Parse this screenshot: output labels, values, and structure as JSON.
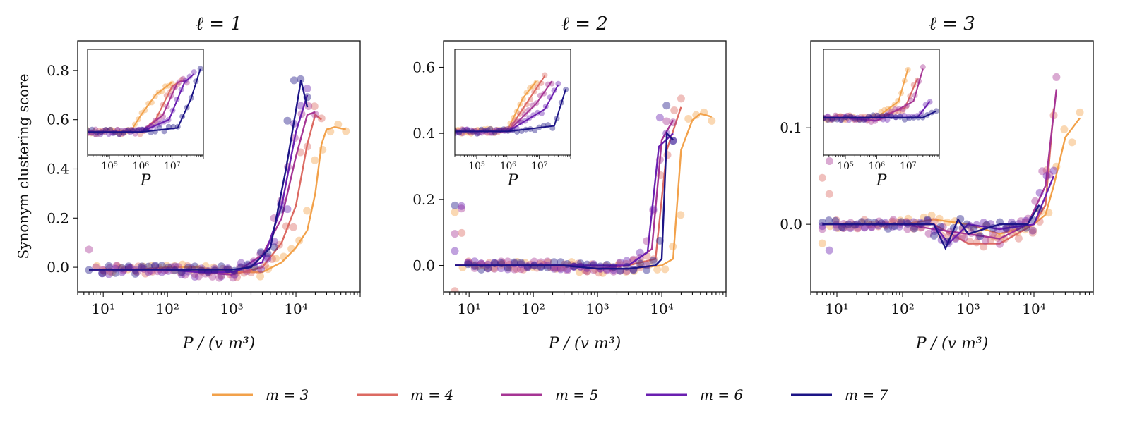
{
  "legend": {
    "placement": "bottom-center",
    "entries": [
      {
        "label": "m = 3",
        "color": "#f2a14a"
      },
      {
        "label": "m = 4",
        "color": "#dc6a62"
      },
      {
        "label": "m = 5",
        "color": "#a63594"
      },
      {
        "label": "m = 6",
        "color": "#6a1fb0"
      },
      {
        "label": "m = 7",
        "color": "#1c1486"
      }
    ]
  },
  "chart_data": [
    {
      "type": "line",
      "title": "ℓ = 1",
      "xlabel": "P / (v m³)",
      "ylabel": "Synonym clustering score",
      "xscale": "log",
      "xlim": [
        4,
        100000
      ],
      "ylim": [
        -0.1,
        0.92
      ],
      "xticks": [
        {
          "value": 10,
          "label": "10¹"
        },
        {
          "value": 100,
          "label": "10²"
        },
        {
          "value": 1000,
          "label": "10³"
        },
        {
          "value": 10000,
          "label": "10⁴"
        }
      ],
      "yticks": [
        {
          "value": 0.0,
          "label": "0.0"
        },
        {
          "value": 0.2,
          "label": "0.2"
        },
        {
          "value": 0.4,
          "label": "0.4"
        },
        {
          "value": 0.6,
          "label": "0.6"
        },
        {
          "value": 0.8,
          "label": "0.8"
        }
      ],
      "grid": false,
      "series": [
        {
          "name": "m = 3",
          "x": [
            6,
            10,
            30,
            100,
            300,
            1000,
            3000,
            6000,
            10000,
            15000,
            20000,
            25000,
            30000,
            40000,
            60000
          ],
          "y": [
            -0.01,
            -0.01,
            -0.01,
            0.0,
            0.0,
            -0.02,
            -0.02,
            0.02,
            0.08,
            0.15,
            0.3,
            0.5,
            0.56,
            0.57,
            0.56
          ]
        },
        {
          "name": "m = 4",
          "x": [
            6,
            10,
            30,
            100,
            300,
            1000,
            3000,
            6000,
            10000,
            15000,
            20000,
            25000
          ],
          "y": [
            -0.01,
            -0.01,
            -0.01,
            -0.01,
            -0.01,
            -0.03,
            0.0,
            0.1,
            0.25,
            0.5,
            0.62,
            0.6
          ]
        },
        {
          "name": "m = 5",
          "x": [
            6,
            10,
            30,
            100,
            300,
            1000,
            3000,
            6000,
            10000,
            15000,
            20000
          ],
          "y": [
            -0.01,
            -0.01,
            -0.01,
            -0.01,
            -0.02,
            -0.03,
            0.05,
            0.2,
            0.45,
            0.62,
            0.63
          ]
        },
        {
          "name": "m = 6",
          "x": [
            6,
            10,
            30,
            100,
            300,
            1000,
            3000,
            6000,
            10000,
            15000
          ],
          "y": [
            -0.01,
            -0.01,
            -0.01,
            -0.01,
            -0.02,
            -0.02,
            0.02,
            0.25,
            0.55,
            0.7
          ]
        },
        {
          "name": "m = 7",
          "x": [
            6,
            10,
            30,
            100,
            300,
            1000,
            2000,
            4000,
            7000,
            12000,
            15000
          ],
          "y": [
            -0.01,
            -0.01,
            -0.01,
            -0.01,
            -0.01,
            -0.01,
            0.0,
            0.08,
            0.4,
            0.76,
            0.65
          ]
        }
      ],
      "inset": {
        "xlabel": "P",
        "xscale": "log",
        "xlim": [
          20000,
          100000000
        ],
        "xticks": [
          {
            "value": 100000,
            "label": "10⁵"
          },
          {
            "value": 1000000,
            "label": "10⁶"
          },
          {
            "value": 10000000,
            "label": "10⁷"
          }
        ],
        "ylim": [
          -0.1,
          0.92
        ],
        "series": [
          {
            "name": "m = 3",
            "x": [
              20000,
              100000,
              500000,
              1000000,
              3000000,
              10000000
            ],
            "y": [
              0.0,
              0.0,
              0.02,
              0.2,
              0.45,
              0.6
            ]
          },
          {
            "name": "m = 4",
            "x": [
              20000,
              100000,
              1000000,
              3000000,
              10000000,
              20000000
            ],
            "y": [
              0.0,
              0.0,
              0.0,
              0.15,
              0.55,
              0.62
            ]
          },
          {
            "name": "m = 5",
            "x": [
              20000,
              100000,
              1000000,
              5000000,
              15000000,
              30000000
            ],
            "y": [
              0.0,
              0.0,
              0.0,
              0.2,
              0.6,
              0.62
            ]
          },
          {
            "name": "m = 6",
            "x": [
              20000,
              100000,
              1000000,
              8000000,
              25000000,
              50000000
            ],
            "y": [
              0.0,
              0.0,
              0.0,
              0.15,
              0.6,
              0.7
            ]
          },
          {
            "name": "m = 7",
            "x": [
              20000,
              100000,
              1000000,
              15000000,
              40000000,
              80000000
            ],
            "y": [
              0.0,
              0.0,
              0.0,
              0.05,
              0.4,
              0.76
            ]
          }
        ]
      }
    },
    {
      "type": "line",
      "title": "ℓ = 2",
      "xlabel": "P / (v m³)",
      "ylabel": "",
      "xscale": "log",
      "xlim": [
        4,
        100000
      ],
      "ylim": [
        -0.08,
        0.68
      ],
      "xticks": [
        {
          "value": 10,
          "label": "10¹"
        },
        {
          "value": 100,
          "label": "10²"
        },
        {
          "value": 1000,
          "label": "10³"
        },
        {
          "value": 10000,
          "label": "10⁴"
        }
      ],
      "yticks": [
        {
          "value": 0.0,
          "label": "0.0"
        },
        {
          "value": 0.2,
          "label": "0.2"
        },
        {
          "value": 0.4,
          "label": "0.4"
        },
        {
          "value": 0.6,
          "label": "0.6"
        }
      ],
      "grid": false,
      "series": [
        {
          "name": "m = 3",
          "x": [
            6,
            10,
            30,
            100,
            300,
            1000,
            3000,
            10000,
            15000,
            20000,
            30000,
            40000,
            60000
          ],
          "y": [
            0.0,
            0.0,
            0.0,
            0.0,
            0.0,
            -0.01,
            -0.01,
            0.0,
            0.02,
            0.35,
            0.44,
            0.46,
            0.45
          ]
        },
        {
          "name": "m = 4",
          "x": [
            6,
            10,
            30,
            100,
            300,
            1000,
            3000,
            8000,
            12000,
            20000
          ],
          "y": [
            0.0,
            0.0,
            0.0,
            0.0,
            0.0,
            -0.01,
            0.0,
            0.02,
            0.35,
            0.48
          ]
        },
        {
          "name": "m = 5",
          "x": [
            6,
            10,
            30,
            100,
            300,
            1000,
            3000,
            7000,
            10000,
            15000
          ],
          "y": [
            0.0,
            0.0,
            0.0,
            0.0,
            0.0,
            -0.01,
            0.0,
            0.05,
            0.38,
            0.44
          ]
        },
        {
          "name": "m = 6",
          "x": [
            6,
            10,
            30,
            100,
            300,
            1000,
            3000,
            6000,
            9000,
            15000
          ],
          "y": [
            0.0,
            0.0,
            0.0,
            0.0,
            0.0,
            0.0,
            0.0,
            0.04,
            0.36,
            0.4
          ]
        },
        {
          "name": "m = 7",
          "x": [
            6,
            10,
            30,
            100,
            300,
            1000,
            3000,
            8000,
            10000,
            12000,
            15000
          ],
          "y": [
            0.0,
            0.0,
            0.0,
            0.0,
            0.0,
            -0.01,
            -0.01,
            0.0,
            0.02,
            0.4,
            0.38
          ]
        }
      ],
      "inset": {
        "xlabel": "P",
        "xscale": "log",
        "xlim": [
          20000,
          100000000
        ],
        "xticks": [
          {
            "value": 100000,
            "label": "10⁵"
          },
          {
            "value": 1000000,
            "label": "10⁶"
          },
          {
            "value": 10000000,
            "label": "10⁷"
          }
        ],
        "ylim": [
          -0.08,
          0.68
        ],
        "series": [
          {
            "name": "m = 3",
            "x": [
              20000,
              100000,
              1000000,
              3000000,
              8000000
            ],
            "y": [
              0.0,
              0.0,
              0.02,
              0.3,
              0.45
            ]
          },
          {
            "name": "m = 4",
            "x": [
              20000,
              100000,
              1000000,
              5000000,
              15000000
            ],
            "y": [
              0.0,
              0.0,
              0.0,
              0.3,
              0.5
            ]
          },
          {
            "name": "m = 5",
            "x": [
              20000,
              100000,
              1000000,
              8000000,
              25000000
            ],
            "y": [
              0.0,
              0.0,
              0.0,
              0.25,
              0.45
            ]
          },
          {
            "name": "m = 6",
            "x": [
              20000,
              100000,
              1000000,
              15000000,
              40000000
            ],
            "y": [
              0.0,
              0.0,
              0.0,
              0.2,
              0.42
            ]
          },
          {
            "name": "m = 7",
            "x": [
              20000,
              100000,
              1000000,
              30000000,
              70000000
            ],
            "y": [
              0.0,
              0.0,
              0.0,
              0.05,
              0.38
            ]
          }
        ]
      }
    },
    {
      "type": "line",
      "title": "ℓ = 3",
      "xlabel": "P / (v m³)",
      "ylabel": "",
      "xscale": "log",
      "xlim": [
        4,
        80000
      ],
      "ylim": [
        -0.07,
        0.19
      ],
      "xticks": [
        {
          "value": 10,
          "label": "10¹"
        },
        {
          "value": 100,
          "label": "10²"
        },
        {
          "value": 1000,
          "label": "10³"
        },
        {
          "value": 10000,
          "label": "10⁴"
        }
      ],
      "yticks": [
        {
          "value": 0.0,
          "label": "0.0"
        },
        {
          "value": 0.1,
          "label": "0.1"
        }
      ],
      "grid": false,
      "series": [
        {
          "name": "m = 3",
          "x": [
            6,
            10,
            30,
            100,
            300,
            1000,
            3000,
            10000,
            15000,
            20000,
            30000,
            50000
          ],
          "y": [
            0.0,
            0.0,
            0.0,
            0.0,
            0.005,
            0.0,
            -0.01,
            0.0,
            0.01,
            0.04,
            0.09,
            0.11
          ]
        },
        {
          "name": "m = 4",
          "x": [
            6,
            10,
            30,
            100,
            300,
            1000,
            3000,
            10000,
            15000,
            20000
          ],
          "y": [
            0.0,
            0.0,
            0.0,
            0.0,
            0.0,
            -0.02,
            -0.02,
            0.0,
            0.02,
            0.12
          ]
        },
        {
          "name": "m = 5",
          "x": [
            6,
            10,
            30,
            100,
            300,
            1000,
            3000,
            8000,
            15000,
            22000
          ],
          "y": [
            0.0,
            0.0,
            0.0,
            0.0,
            -0.005,
            -0.01,
            -0.015,
            0.0,
            0.04,
            0.14
          ]
        },
        {
          "name": "m = 6",
          "x": [
            6,
            10,
            30,
            100,
            300,
            500,
            1000,
            3000,
            10000,
            20000
          ],
          "y": [
            0.0,
            0.0,
            0.0,
            0.0,
            0.0,
            -0.02,
            0.0,
            -0.005,
            0.0,
            0.05
          ]
        },
        {
          "name": "m = 7",
          "x": [
            6,
            10,
            30,
            100,
            300,
            450,
            700,
            1000,
            3000,
            8000,
            12000
          ],
          "y": [
            0.0,
            0.0,
            0.0,
            0.0,
            0.0,
            -0.025,
            0.005,
            -0.01,
            0.0,
            0.0,
            0.02
          ]
        }
      ],
      "inset": {
        "xlabel": "P",
        "xscale": "log",
        "xlim": [
          20000,
          100000000
        ],
        "xticks": [
          {
            "value": 100000,
            "label": "10⁵"
          },
          {
            "value": 1000000,
            "label": "10⁶"
          },
          {
            "value": 10000000,
            "label": "10⁷"
          }
        ],
        "ylim": [
          -0.07,
          0.19
        ],
        "series": [
          {
            "name": "m = 3",
            "x": [
              20000,
              100000,
              1000000,
              5000000,
              10000000
            ],
            "y": [
              0.0,
              0.0,
              0.0,
              0.05,
              0.15
            ]
          },
          {
            "name": "m = 4",
            "x": [
              20000,
              100000,
              1000000,
              8000000,
              20000000
            ],
            "y": [
              0.0,
              0.0,
              0.0,
              0.03,
              0.12
            ]
          },
          {
            "name": "m = 5",
            "x": [
              20000,
              100000,
              1000000,
              15000000,
              30000000
            ],
            "y": [
              0.0,
              0.0,
              -0.01,
              0.05,
              0.15
            ]
          },
          {
            "name": "m = 6",
            "x": [
              20000,
              100000,
              1000000,
              20000000,
              50000000
            ],
            "y": [
              0.0,
              0.0,
              0.0,
              0.0,
              0.05
            ]
          },
          {
            "name": "m = 7",
            "x": [
              20000,
              100000,
              1000000,
              30000000,
              80000000
            ],
            "y": [
              0.0,
              0.0,
              0.0,
              0.0,
              0.02
            ]
          }
        ]
      }
    }
  ]
}
